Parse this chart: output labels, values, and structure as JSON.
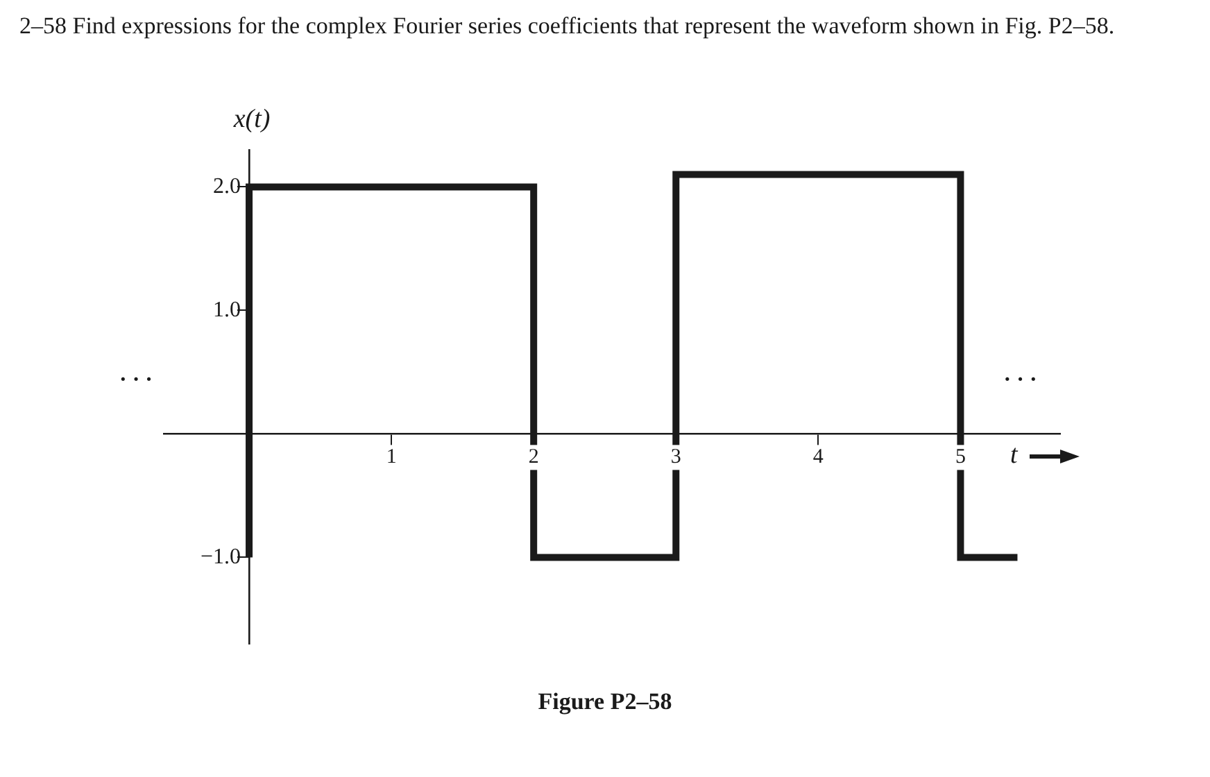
{
  "chart_data": {
    "type": "line",
    "title": "2–58 Find expressions for the complex Fourier series coefficients that represent the waveform shown in Fig. P2–58.",
    "xlabel": "t",
    "ylabel": "x(t)",
    "series": [
      {
        "color": "#1a1a1a",
        "x": [
          0,
          0,
          2,
          2,
          3,
          3,
          5,
          5,
          5.4
        ],
        "values": [
          -1,
          2,
          2,
          -1,
          -1,
          2.1,
          2.1,
          -1,
          -1
        ]
      }
    ],
    "xlim": [
      -0.6,
      5.7
    ],
    "xticks": [
      1,
      2,
      3,
      4,
      5
    ],
    "ylim": [
      -1.7,
      2.3
    ],
    "yticks": [
      {
        "value": -1,
        "label": "−1.0"
      },
      {
        "value": 1,
        "label": "1.0"
      },
      {
        "value": 2,
        "label": "2.0"
      }
    ],
    "grid": false,
    "legend": false,
    "marker": "none",
    "line_style": "solid",
    "annotations": [
      "· · ·",
      "· · ·",
      "Figure P2–58"
    ]
  }
}
